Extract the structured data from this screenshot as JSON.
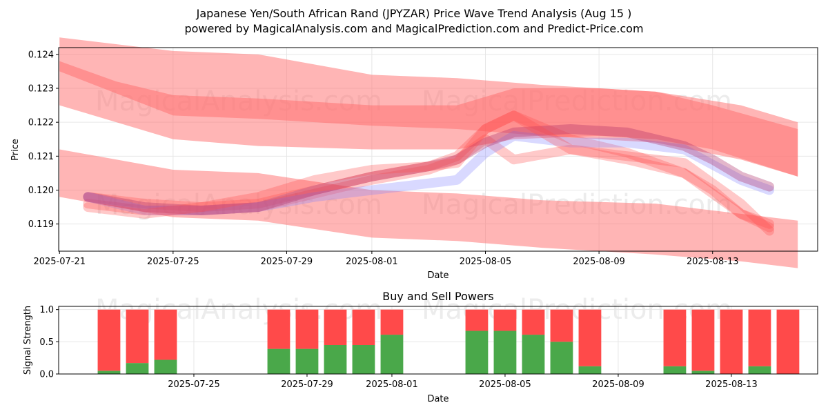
{
  "header": {
    "title": "Japanese Yen/South African Rand (JPYZAR) Price Wave Trend Analysis (Aug 15 )",
    "subtitle": "powered by MagicalAnalysis.com and MagicalPrediction.com and Predict-Price.com"
  },
  "watermarks": [
    "MagicalAnalysis.com",
    "MagicalPrediction.com"
  ],
  "colors": {
    "band": "#ff6b6b",
    "wave_red": "#ff4d4d",
    "wave_blue": "#8080ff",
    "wave_purple": "#b0306a",
    "buy": "#4aa84a",
    "sell": "#ff4a4a",
    "grid": "#e6e6e6"
  },
  "chart_data": [
    {
      "type": "area",
      "title": "",
      "xlabel": "Date",
      "ylabel": "Price",
      "x_ticks": [
        "2025-07-21",
        "2025-07-25",
        "2025-07-29",
        "2025-08-01",
        "2025-08-05",
        "2025-08-09",
        "2025-08-13"
      ],
      "y_ticks": [
        "0.119",
        "0.120",
        "0.121",
        "0.122",
        "0.123",
        "0.124"
      ],
      "x_range": [
        "2025-07-21",
        "2025-08-16"
      ],
      "ylim": [
        0.1182,
        0.1242
      ],
      "grid": true,
      "bands": [
        {
          "x": [
            "2025-07-21",
            "2025-07-25",
            "2025-07-28",
            "2025-08-01",
            "2025-08-04",
            "2025-08-07",
            "2025-08-11",
            "2025-08-14",
            "2025-08-16"
          ],
          "upper": [
            0.1245,
            0.1241,
            0.124,
            0.1234,
            0.1233,
            0.1231,
            0.1229,
            0.1225,
            0.122
          ],
          "lower": [
            0.1235,
            0.1222,
            0.1221,
            0.1219,
            0.1218,
            0.1216,
            0.1214,
            0.1209,
            0.1204
          ]
        },
        {
          "x": [
            "2025-07-21",
            "2025-07-23",
            "2025-07-25",
            "2025-07-28",
            "2025-08-01",
            "2025-08-04",
            "2025-08-06",
            "2025-08-09",
            "2025-08-11",
            "2025-08-13",
            "2025-08-16"
          ],
          "upper": [
            0.1238,
            0.1232,
            0.1228,
            0.1227,
            0.1225,
            0.1225,
            0.123,
            0.123,
            0.1229,
            0.1225,
            0.1218
          ],
          "lower": [
            0.1225,
            0.122,
            0.1215,
            0.1213,
            0.1212,
            0.1212,
            0.1215,
            0.1216,
            0.1215,
            0.1212,
            0.1204
          ]
        },
        {
          "x": [
            "2025-07-21",
            "2025-07-25",
            "2025-07-28",
            "2025-08-01",
            "2025-08-04",
            "2025-08-07",
            "2025-08-11",
            "2025-08-14",
            "2025-08-16"
          ],
          "upper": [
            0.1212,
            0.1206,
            0.1205,
            0.12,
            0.1199,
            0.1197,
            0.1196,
            0.1193,
            0.1191
          ],
          "lower": [
            0.1198,
            0.1192,
            0.1191,
            0.1186,
            0.1185,
            0.1183,
            0.1181,
            0.1179,
            0.1177
          ]
        }
      ],
      "waves": [
        {
          "color": "red",
          "x": [
            "2025-07-22",
            "2025-07-24",
            "2025-07-26",
            "2025-07-28",
            "2025-07-30",
            "2025-08-01",
            "2025-08-03",
            "2025-08-04",
            "2025-08-05",
            "2025-08-06",
            "2025-08-08",
            "2025-08-10",
            "2025-08-12",
            "2025-08-14",
            "2025-08-15"
          ],
          "y": [
            0.1198,
            0.1196,
            0.1195,
            0.1196,
            0.12,
            0.1204,
            0.1207,
            0.121,
            0.1218,
            0.1222,
            0.1215,
            0.1211,
            0.1205,
            0.1193,
            0.119
          ]
        },
        {
          "color": "red",
          "x": [
            "2025-07-22",
            "2025-07-24",
            "2025-07-26",
            "2025-07-28",
            "2025-07-30",
            "2025-08-01",
            "2025-08-03",
            "2025-08-04",
            "2025-08-05",
            "2025-08-06",
            "2025-08-08",
            "2025-08-10",
            "2025-08-12",
            "2025-08-14",
            "2025-08-15"
          ],
          "y": [
            0.1196,
            0.1194,
            0.1194,
            0.1195,
            0.1199,
            0.1203,
            0.1206,
            0.1209,
            0.1215,
            0.1209,
            0.1212,
            0.121,
            0.1208,
            0.1196,
            0.1188
          ]
        },
        {
          "color": "blue",
          "x": [
            "2025-07-22",
            "2025-07-24",
            "2025-07-26",
            "2025-07-28",
            "2025-07-30",
            "2025-08-01",
            "2025-08-03",
            "2025-08-04",
            "2025-08-05",
            "2025-08-06",
            "2025-08-08",
            "2025-08-10",
            "2025-08-12",
            "2025-08-14",
            "2025-08-15"
          ],
          "y": [
            0.1198,
            0.1194,
            0.1194,
            0.1195,
            0.1198,
            0.12,
            0.1202,
            0.1203,
            0.1211,
            0.1216,
            0.1214,
            0.1214,
            0.1212,
            0.1203,
            0.12
          ]
        },
        {
          "color": "purple",
          "x": [
            "2025-07-22",
            "2025-07-24",
            "2025-07-26",
            "2025-07-28",
            "2025-07-30",
            "2025-08-01",
            "2025-08-03",
            "2025-08-04",
            "2025-08-05",
            "2025-08-06",
            "2025-08-08",
            "2025-08-10",
            "2025-08-12",
            "2025-08-13",
            "2025-08-14",
            "2025-08-15"
          ],
          "y": [
            0.1198,
            0.1195,
            0.1194,
            0.1195,
            0.12,
            0.1204,
            0.1207,
            0.1209,
            0.1214,
            0.1217,
            0.1218,
            0.1217,
            0.1213,
            0.1209,
            0.1204,
            0.1201
          ]
        },
        {
          "color": "red",
          "x": [
            "2025-07-22",
            "2025-07-24",
            "2025-07-26",
            "2025-07-28",
            "2025-07-30",
            "2025-08-01",
            "2025-08-03",
            "2025-08-04",
            "2025-08-05",
            "2025-08-06",
            "2025-08-08",
            "2025-08-10",
            "2025-08-12",
            "2025-08-13",
            "2025-08-14",
            "2025-08-15"
          ],
          "y": [
            0.1195,
            0.1193,
            0.1195,
            0.1198,
            0.1203,
            0.1206,
            0.1207,
            0.1208,
            0.1218,
            0.1222,
            0.1212,
            0.1209,
            0.1205,
            0.12,
            0.1193,
            0.1189
          ]
        }
      ]
    },
    {
      "type": "bar",
      "title": "Buy and Sell Powers",
      "xlabel": "Date",
      "ylabel": "Signal Strength",
      "x_ticks": [
        "2025-07-25",
        "2025-07-29",
        "2025-08-01",
        "2025-08-05",
        "2025-08-09",
        "2025-08-13"
      ],
      "y_ticks": [
        "0.0",
        "0.5",
        "1.0"
      ],
      "ylim": [
        0,
        1.05
      ],
      "grid": true,
      "series": [
        {
          "name": "buy",
          "x": [
            "2025-07-22",
            "2025-07-23",
            "2025-07-24",
            "2025-07-28",
            "2025-07-29",
            "2025-07-30",
            "2025-07-31",
            "2025-08-01",
            "2025-08-04",
            "2025-08-05",
            "2025-08-06",
            "2025-08-07",
            "2025-08-08",
            "2025-08-11",
            "2025-08-12",
            "2025-08-13",
            "2025-08-14",
            "2025-08-15"
          ],
          "values": [
            0.05,
            0.17,
            0.22,
            0.39,
            0.39,
            0.45,
            0.45,
            0.61,
            0.67,
            0.67,
            0.61,
            0.5,
            0.12,
            0.12,
            0.05,
            0.0,
            0.12,
            0.0
          ]
        },
        {
          "name": "sell",
          "x": [
            "2025-07-22",
            "2025-07-23",
            "2025-07-24",
            "2025-07-28",
            "2025-07-29",
            "2025-07-30",
            "2025-07-31",
            "2025-08-01",
            "2025-08-04",
            "2025-08-05",
            "2025-08-06",
            "2025-08-07",
            "2025-08-08",
            "2025-08-11",
            "2025-08-12",
            "2025-08-13",
            "2025-08-14",
            "2025-08-15"
          ],
          "values": [
            0.95,
            0.83,
            0.78,
            0.61,
            0.61,
            0.55,
            0.55,
            0.39,
            0.33,
            0.33,
            0.39,
            0.5,
            0.88,
            0.88,
            0.95,
            1.0,
            0.88,
            1.0
          ]
        }
      ]
    }
  ]
}
